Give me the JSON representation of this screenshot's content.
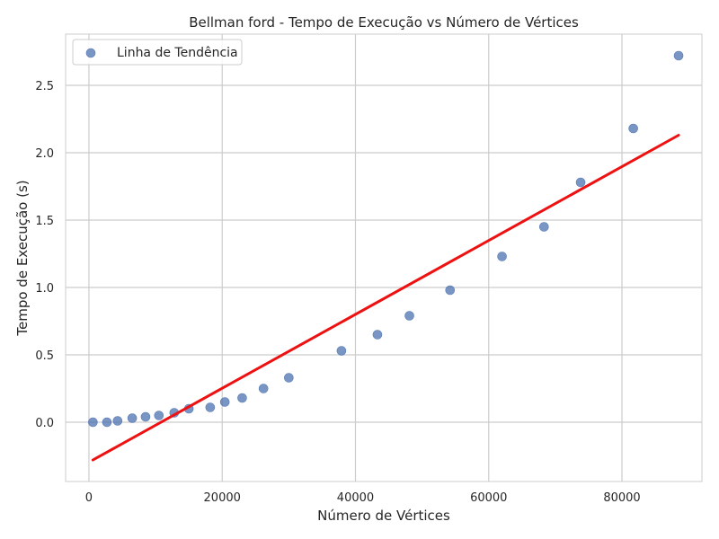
{
  "chart_data": {
    "type": "scatter",
    "title": "Bellman ford - Tempo de Execução vs Número de Vértices",
    "xlabel": "Número de Vértices",
    "ylabel": "Tempo de Execução (s)",
    "xlim": [
      -3500,
      92000
    ],
    "ylim": [
      -0.44,
      2.88
    ],
    "xticks": [
      0,
      20000,
      40000,
      60000,
      80000
    ],
    "xtick_labels": [
      "0",
      "20000",
      "40000",
      "60000",
      "80000"
    ],
    "yticks": [
      0.0,
      0.5,
      1.0,
      1.5,
      2.0,
      2.5
    ],
    "ytick_labels": [
      "0.0",
      "0.5",
      "1.0",
      "1.5",
      "2.0",
      "2.5"
    ],
    "grid": true,
    "legend": "top-left",
    "series": [
      {
        "name": "Linha de Tendência",
        "kind": "scatter",
        "color": "#4c72b0",
        "x": [
          600,
          2700,
          4300,
          6500,
          8500,
          10500,
          12800,
          15000,
          18200,
          20400,
          23000,
          26200,
          30000,
          37900,
          43300,
          48100,
          54200,
          62000,
          68300,
          73800,
          81700,
          88500
        ],
        "y": [
          0.0,
          0.0,
          0.01,
          0.03,
          0.04,
          0.05,
          0.07,
          0.1,
          0.11,
          0.15,
          0.18,
          0.25,
          0.33,
          0.53,
          0.65,
          0.79,
          0.98,
          1.23,
          1.45,
          1.78,
          2.18,
          2.72
        ]
      },
      {
        "kind": "line",
        "color": "#ee1111",
        "x": [
          600,
          88500
        ],
        "y": [
          -0.28,
          2.13
        ]
      }
    ]
  }
}
